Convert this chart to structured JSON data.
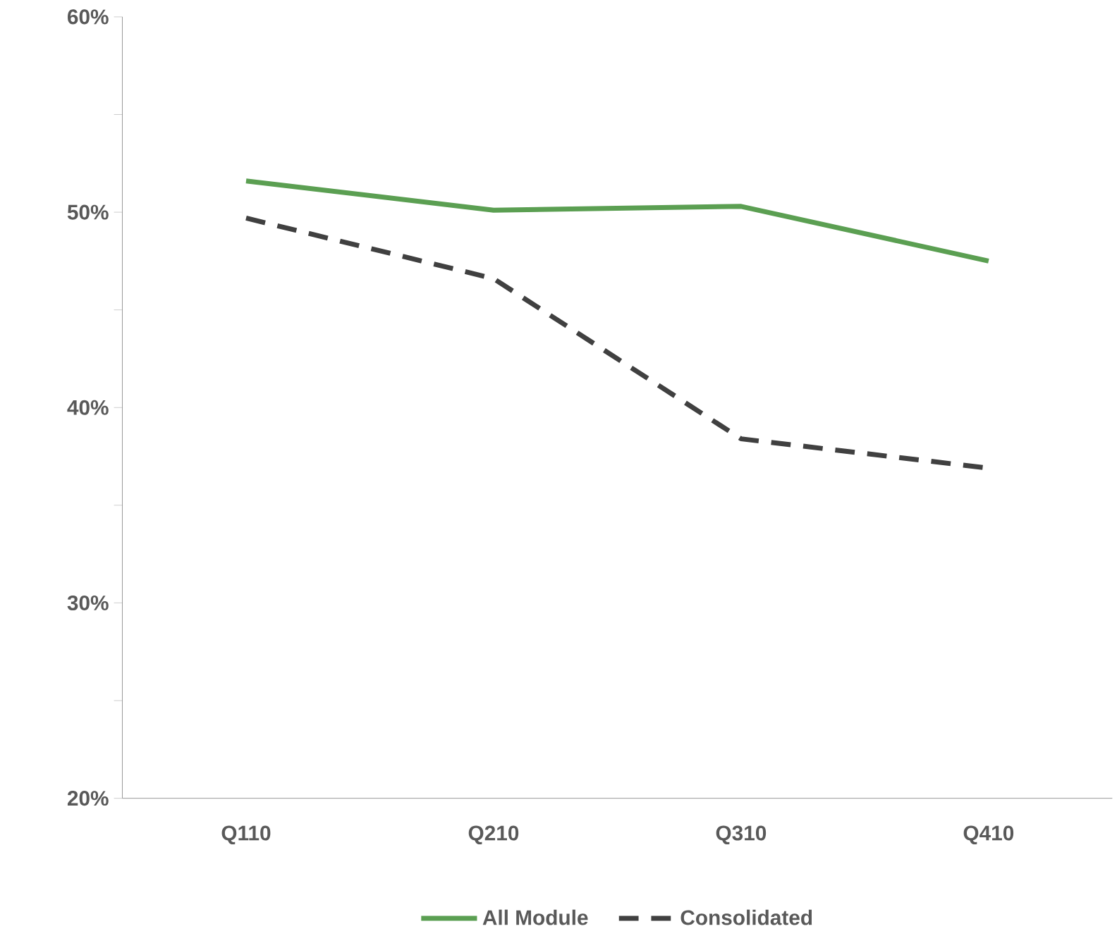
{
  "chart_data": {
    "type": "line",
    "categories": [
      "Q110",
      "Q210",
      "Q310",
      "Q410"
    ],
    "series": [
      {
        "name": "All Module",
        "color": "#5b9f52",
        "line_style": "solid",
        "values": [
          51.6,
          50.1,
          50.3,
          47.5
        ]
      },
      {
        "name": "Consolidated",
        "color": "#404040",
        "line_style": "dashed",
        "values": [
          49.7,
          46.6,
          38.4,
          36.9
        ]
      }
    ],
    "ylim": [
      20,
      60
    ],
    "yticks": [
      {
        "value": 20,
        "label": "20%"
      },
      {
        "value": 25,
        "label": null
      },
      {
        "value": 30,
        "label": "30%"
      },
      {
        "value": 35,
        "label": null
      },
      {
        "value": 40,
        "label": "40%"
      },
      {
        "value": 45,
        "label": null
      },
      {
        "value": 50,
        "label": "50%"
      },
      {
        "value": 55,
        "label": null
      },
      {
        "value": 60,
        "label": "60%"
      }
    ],
    "grid": false,
    "legend": "bottom",
    "marker": "none"
  }
}
